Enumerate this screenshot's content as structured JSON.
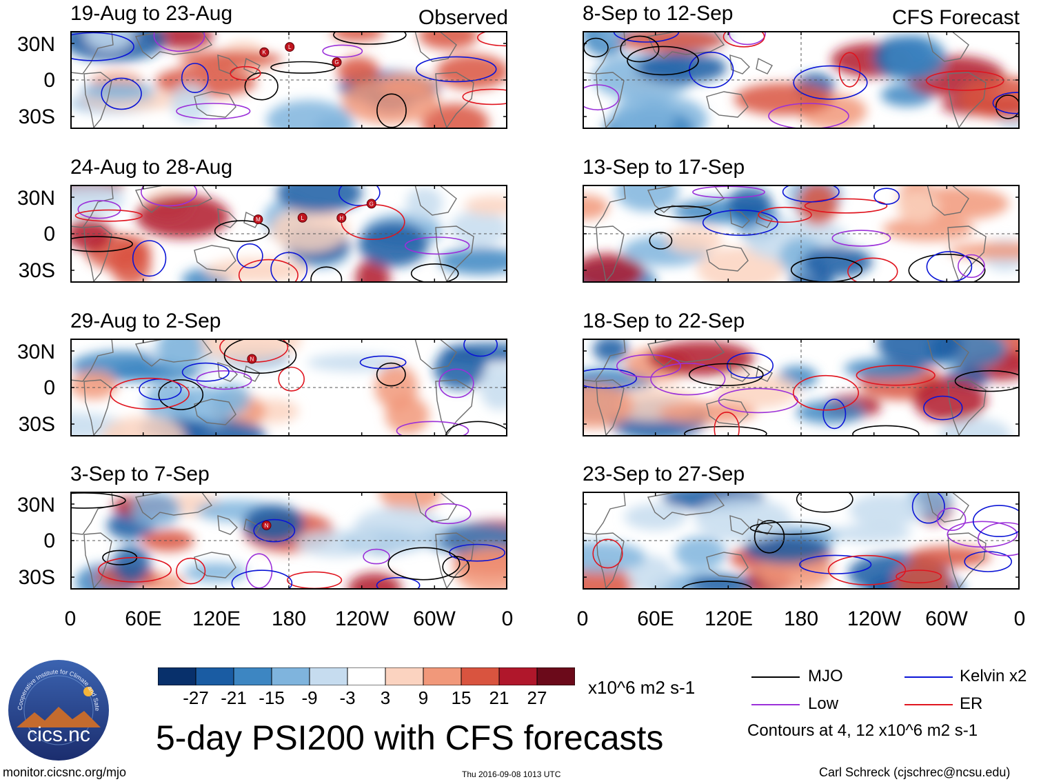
{
  "header": {
    "observed_label": "Observed",
    "forecast_label": "CFS Forecast"
  },
  "panels": [
    {
      "title": "19-Aug to 23-Aug",
      "storms": [
        "K",
        "L",
        "G"
      ]
    },
    {
      "title": "24-Aug to 28-Aug",
      "storms": [
        "M",
        "L",
        "H",
        "G"
      ]
    },
    {
      "title": "29-Aug to 2-Sep",
      "storms": [
        "N"
      ]
    },
    {
      "title": "3-Sep to 7-Sep",
      "storms": [
        "N"
      ]
    },
    {
      "title": "8-Sep to 12-Sep",
      "storms": []
    },
    {
      "title": "13-Sep to 17-Sep",
      "storms": []
    },
    {
      "title": "18-Sep to 22-Sep",
      "storms": []
    },
    {
      "title": "23-Sep to 27-Sep",
      "storms": []
    }
  ],
  "axes": {
    "y_labels": [
      "30N",
      "0",
      "30S"
    ],
    "x_labels": [
      "0",
      "60E",
      "120E",
      "180",
      "120W",
      "60W",
      "0"
    ]
  },
  "colorbar": {
    "labels": [
      "-27",
      "-21",
      "-15",
      "-9",
      "-3",
      "3",
      "9",
      "15",
      "21",
      "27"
    ],
    "colors": [
      "#08306b",
      "#1a5ca3",
      "#3d86c2",
      "#7fb4dd",
      "#c6dcef",
      "#ffffff",
      "#fbd3c0",
      "#f1987a",
      "#d9543f",
      "#b0172b",
      "#6b0a1a"
    ],
    "units": "x10^6 m2 s-1"
  },
  "legend": {
    "mjo": "MJO",
    "kelvin": "Kelvin x2",
    "low": "Low",
    "er": "ER",
    "contours_note": "Contours at 4, 12 x10^6 m2 s-1",
    "colors": {
      "mjo": "#000000",
      "kelvin": "#0a14d6",
      "low": "#9b30d9",
      "er": "#e0141e"
    }
  },
  "logo": {
    "text": "cics.nc",
    "ring_text": "Cooperative Institute for Climate and Satellites"
  },
  "main_title": "5-day PSI200 with CFS forecasts",
  "footer": {
    "url": "monitor.cicsnc.org/mjo",
    "timestamp": "Thu 2016-09-08 1013 UTC",
    "credit": "Carl Schreck (cjschrec@ncsu.edu)"
  }
}
